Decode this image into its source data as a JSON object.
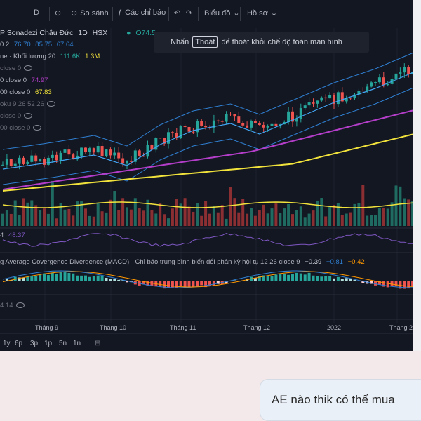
{
  "toolbar": {
    "interval_label": "D",
    "compare_label": "So sánh",
    "indicators_label": "Các chỉ báo",
    "chart_type_label": "Biểu đồ",
    "layout_label": "Hồ sơ"
  },
  "legend": {
    "symbol": "P Sonadezi Châu Đức",
    "interval": "1D",
    "exchange": "HSX",
    "ohlc": "O74.5",
    "bb": {
      "prefix": "0 2",
      "v1": "76.70",
      "v2": "85.75",
      "v3": "67.64"
    },
    "volume": {
      "prefix": "ne · Khối lượng 20",
      "v1": "111.6K",
      "v2": "1.3M"
    },
    "ma1": {
      "label": "close 0"
    },
    "ma2": {
      "label": "0 close 0",
      "value": "74.97"
    },
    "ma3": {
      "label": "00 close 0",
      "value": "67.83"
    },
    "ichimoku": {
      "label": "oku 9 26 52 26"
    },
    "hidden1": {
      "label": "close 0"
    },
    "hidden2": {
      "label": "00 close 0"
    }
  },
  "tooltip": {
    "prefix": "Nhấn",
    "key": "Thoát",
    "suffix": "để thoát khỏi chế độ toàn màn hình"
  },
  "rsi": {
    "label": "4",
    "value": "48.37"
  },
  "macd": {
    "label": "g Average Covergence Divergence (MACD) · Chỉ báo trung bình biến đổi phân kỳ hội tụ 12 26 close 9",
    "v1": "−0.39",
    "v2": "−0.81",
    "v3": "−0.42"
  },
  "extra": {
    "label": "4 14"
  },
  "months": [
    "Tháng 9",
    "Tháng 10",
    "Tháng 11",
    "Tháng 12",
    "2022",
    "Tháng 2"
  ],
  "ranges": [
    "1y",
    "6p",
    "3p",
    "1p",
    "5n",
    "1n"
  ],
  "chat": {
    "message": "AE nào thik có thể mua"
  },
  "colors": {
    "up": "#26a69a",
    "down": "#ef5350",
    "ma_yellow": "#f2e33c",
    "ma_purple": "#b43ec9",
    "bb": "#2f7fd1"
  }
}
